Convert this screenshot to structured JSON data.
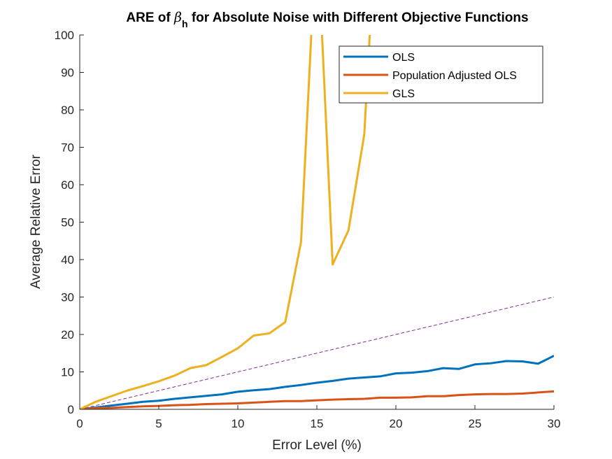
{
  "chart_data": {
    "type": "line",
    "title_parts": [
      "ARE of ",
      "β",
      "h",
      " for Absolute Noise with Different Objective Functions"
    ],
    "xlabel": "Error Level (%)",
    "ylabel": "Average Relative Error",
    "xlim": [
      0,
      30
    ],
    "ylim": [
      0,
      100
    ],
    "xticks": [
      0,
      5,
      10,
      15,
      20,
      25,
      30
    ],
    "yticks": [
      0,
      10,
      20,
      30,
      40,
      50,
      60,
      70,
      80,
      90,
      100
    ],
    "grid": false,
    "legend_position": "top-right",
    "x": [
      0,
      1,
      2,
      3,
      4,
      5,
      6,
      7,
      8,
      9,
      10,
      11,
      12,
      13,
      14,
      15,
      16,
      17,
      18,
      19,
      20,
      21,
      22,
      23,
      24,
      25,
      26,
      27,
      28,
      29,
      30
    ],
    "series": [
      {
        "name": "OLS",
        "color": "#0072BD",
        "values": [
          0,
          0.5,
          1.0,
          1.5,
          2.0,
          2.3,
          2.8,
          3.2,
          3.6,
          4.0,
          4.7,
          5.1,
          5.4,
          6.0,
          6.5,
          7.1,
          7.6,
          8.2,
          8.5,
          8.8,
          9.6,
          9.8,
          10.2,
          11.0,
          10.8,
          12.0,
          12.3,
          12.9,
          12.8,
          12.2,
          14.3
        ]
      },
      {
        "name": "Population Adjusted OLS",
        "color": "#D95319",
        "values": [
          0,
          0.3,
          0.4,
          0.6,
          0.8,
          0.9,
          1.1,
          1.2,
          1.4,
          1.5,
          1.6,
          1.8,
          2.0,
          2.2,
          2.2,
          2.4,
          2.6,
          2.7,
          2.8,
          3.1,
          3.1,
          3.2,
          3.5,
          3.5,
          3.8,
          4.0,
          4.1,
          4.1,
          4.2,
          4.5,
          4.8
        ]
      },
      {
        "name": "GLS",
        "color": "#EDB120",
        "values": [
          0,
          2.0,
          3.5,
          5.0,
          6.2,
          7.5,
          9.0,
          11.0,
          11.8,
          14.0,
          16.3,
          19.7,
          20.3,
          23.3,
          44.7,
          130,
          38.7,
          47.8,
          73.4,
          150,
          null,
          null,
          null,
          null,
          null,
          null,
          null,
          null,
          null,
          null,
          null
        ]
      }
    ],
    "reference_line": {
      "style": "dashed",
      "color": "#7E2F8E",
      "x": [
        0,
        30
      ],
      "y": [
        0,
        30
      ]
    }
  }
}
